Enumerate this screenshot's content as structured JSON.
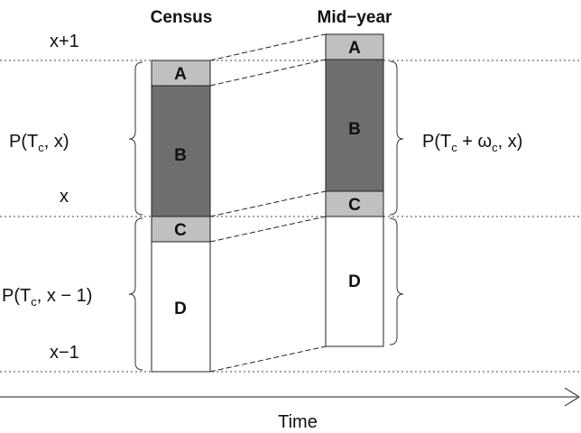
{
  "headers": {
    "census": "Census",
    "midyear": "Mid−year"
  },
  "age_labels": [
    "x+1",
    "x",
    "x−1"
  ],
  "segments": [
    "A",
    "B",
    "C",
    "D"
  ],
  "population_labels": {
    "census_x": [
      "P(T",
      "c",
      ", x)"
    ],
    "census_x_minus_1": [
      "P(T",
      "c",
      ", x − 1)"
    ],
    "midyear_x": [
      "P(T",
      "c",
      " + ω",
      "c",
      ", x)"
    ]
  },
  "axis_label": "Time"
}
